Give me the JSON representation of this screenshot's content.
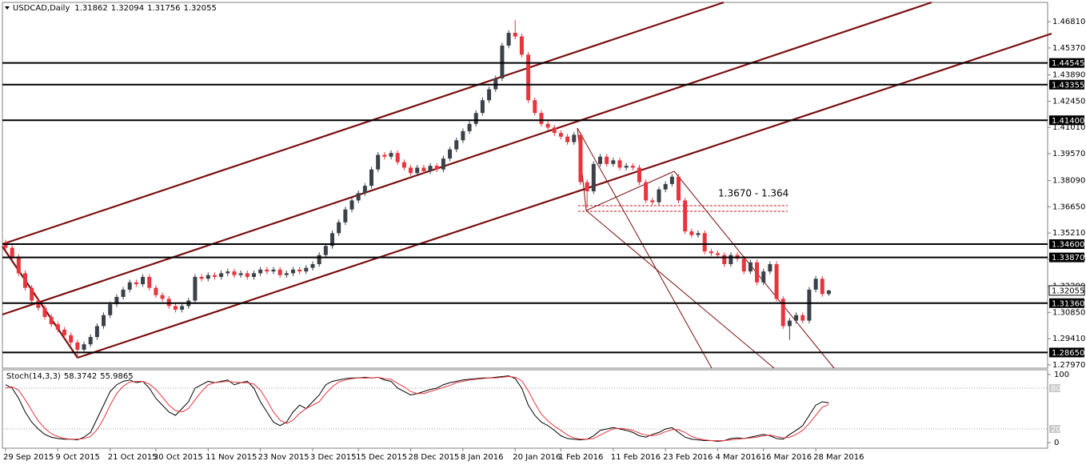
{
  "chart_data": [
    {
      "type": "candlestick",
      "title": "USDCAD,Daily",
      "categories": [
        "29 Sep 2015",
        null,
        null,
        null,
        null,
        null,
        null,
        null,
        "9 Oct 2015",
        null,
        null,
        null,
        null,
        null,
        null,
        null,
        "21 Oct 2015",
        null,
        null,
        null,
        null,
        null,
        null,
        "30 Oct 2015",
        null,
        null,
        null,
        null,
        null,
        null,
        null,
        "11 Nov 2015",
        null,
        null,
        null,
        null,
        null,
        null,
        null,
        "23 Nov 2015",
        null,
        null,
        null,
        null,
        null,
        null,
        null,
        "3 Dec 2015",
        null,
        null,
        null,
        null,
        null,
        null,
        "15 Dec 2015",
        null,
        null,
        null,
        null,
        null,
        null,
        null,
        "28 Dec 2015",
        null,
        null,
        null,
        null,
        null,
        null,
        null,
        "8 Jan 2016",
        null,
        null,
        null,
        null,
        null,
        null,
        null,
        "20 Jan 2016",
        null,
        null,
        null,
        null,
        null,
        null,
        "1 Feb 2016",
        null,
        null,
        null,
        null,
        null,
        null,
        null,
        "11 Feb 2016",
        null,
        null,
        null,
        null,
        null,
        null,
        null,
        "23 Feb 2016",
        null,
        null,
        null,
        null,
        null,
        null,
        null,
        "4 Mar 2016",
        null,
        null,
        null,
        null,
        null,
        null,
        "16 Mar 2016",
        null,
        null,
        null,
        null,
        null,
        null,
        null,
        "28 Mar 2016",
        null,
        null
      ],
      "open": [
        1.347,
        1.344,
        1.339,
        1.33,
        1.322,
        1.315,
        1.311,
        1.306,
        1.302,
        1.299,
        1.296,
        1.292,
        1.288,
        1.291,
        1.295,
        1.301,
        1.307,
        1.313,
        1.317,
        1.321,
        1.325,
        1.324,
        1.328,
        1.322,
        1.318,
        1.316,
        1.312,
        1.31,
        1.312,
        1.315,
        1.328,
        1.327,
        1.329,
        1.328,
        1.33,
        1.331,
        1.329,
        1.33,
        1.328,
        1.33,
        1.332,
        1.331,
        1.332,
        1.329,
        1.33,
        1.332,
        1.331,
        1.333,
        1.335,
        1.34,
        1.345,
        1.352,
        1.358,
        1.365,
        1.37,
        1.374,
        1.378,
        1.387,
        1.395,
        1.394,
        1.396,
        1.391,
        1.388,
        1.385,
        1.388,
        1.386,
        1.389,
        1.387,
        1.393,
        1.398,
        1.403,
        1.408,
        1.412,
        1.418,
        1.425,
        1.431,
        1.437,
        1.455,
        1.462,
        1.46,
        1.45,
        1.425,
        1.418,
        1.412,
        1.41,
        1.407,
        1.405,
        1.402,
        1.406,
        1.38,
        1.375,
        1.39,
        1.394,
        1.39,
        1.392,
        1.388,
        1.389,
        1.388,
        1.38,
        1.37,
        1.369,
        1.376,
        1.379,
        1.383,
        1.37,
        1.353,
        1.351,
        1.352,
        1.342,
        1.341,
        1.34,
        1.335,
        1.34,
        1.338,
        1.331,
        1.336,
        1.325,
        1.331,
        1.335,
        1.316,
        1.301,
        1.304,
        1.307,
        1.304,
        1.321,
        1.327,
        1.31862
      ],
      "high": [
        1.3485,
        1.3455,
        1.3405,
        1.3315,
        1.3235,
        1.3165,
        1.3125,
        1.3075,
        1.3035,
        1.3005,
        1.2975,
        1.2935,
        1.2925,
        1.2965,
        1.3025,
        1.3085,
        1.3145,
        1.3185,
        1.3225,
        1.3265,
        1.3265,
        1.3295,
        1.3295,
        1.3235,
        1.3195,
        1.3175,
        1.3135,
        1.3135,
        1.3165,
        1.3295,
        1.3295,
        1.3305,
        1.3305,
        1.3315,
        1.3325,
        1.3325,
        1.3315,
        1.3315,
        1.3315,
        1.3335,
        1.3335,
        1.3335,
        1.3335,
        1.3315,
        1.3335,
        1.3335,
        1.3345,
        1.3365,
        1.3415,
        1.3465,
        1.3535,
        1.3595,
        1.3665,
        1.3715,
        1.3755,
        1.3795,
        1.3885,
        1.3965,
        1.3965,
        1.3975,
        1.3975,
        1.3925,
        1.3895,
        1.3895,
        1.3895,
        1.3905,
        1.3905,
        1.3945,
        1.3995,
        1.4045,
        1.4095,
        1.4135,
        1.4195,
        1.4265,
        1.4325,
        1.4385,
        1.4565,
        1.4635,
        1.4689,
        1.4615,
        1.4515,
        1.4265,
        1.4195,
        1.4135,
        1.4115,
        1.4085,
        1.4065,
        1.4075,
        1.4075,
        1.3815,
        1.3915,
        1.3955,
        1.3955,
        1.3935,
        1.3935,
        1.3905,
        1.3905,
        1.3895,
        1.3815,
        1.3715,
        1.3775,
        1.3805,
        1.3845,
        1.3845,
        1.3715,
        1.3545,
        1.3535,
        1.3535,
        1.3435,
        1.3425,
        1.3415,
        1.3415,
        1.3415,
        1.3395,
        1.3375,
        1.3375,
        1.3325,
        1.3365,
        1.3365,
        1.3175,
        1.3055,
        1.3085,
        1.3085,
        1.3225,
        1.3285,
        1.3285,
        1.32094
      ],
      "low": [
        1.3425,
        1.3375,
        1.3285,
        1.3205,
        1.3135,
        1.3095,
        1.3045,
        1.3005,
        1.2975,
        1.2945,
        1.2905,
        1.2845,
        1.2865,
        1.2895,
        1.2935,
        1.2995,
        1.3055,
        1.3115,
        1.3155,
        1.3195,
        1.3225,
        1.3225,
        1.3205,
        1.3165,
        1.3145,
        1.3105,
        1.3085,
        1.3085,
        1.3105,
        1.3135,
        1.3255,
        1.3255,
        1.3265,
        1.3265,
        1.3285,
        1.3275,
        1.3275,
        1.3265,
        1.3265,
        1.3285,
        1.3295,
        1.3295,
        1.3275,
        1.3275,
        1.3285,
        1.3295,
        1.3295,
        1.3315,
        1.3335,
        1.3385,
        1.3435,
        1.3505,
        1.3565,
        1.3635,
        1.3685,
        1.3725,
        1.3765,
        1.3855,
        1.3925,
        1.3925,
        1.3895,
        1.3865,
        1.3835,
        1.3835,
        1.3845,
        1.3845,
        1.3855,
        1.3855,
        1.3915,
        1.3965,
        1.4015,
        1.4065,
        1.4105,
        1.4165,
        1.4235,
        1.4295,
        1.4355,
        1.4535,
        1.4585,
        1.4485,
        1.4235,
        1.4165,
        1.4105,
        1.4085,
        1.4055,
        1.4035,
        1.4005,
        1.4005,
        1.3785,
        1.366,
        1.3735,
        1.3885,
        1.3885,
        1.3885,
        1.3865,
        1.3865,
        1.3865,
        1.3785,
        1.3685,
        1.3675,
        1.3675,
        1.3745,
        1.3775,
        1.3685,
        1.3515,
        1.3495,
        1.3495,
        1.3405,
        1.3395,
        1.3385,
        1.3335,
        1.3335,
        1.3365,
        1.3295,
        1.3295,
        1.3235,
        1.3235,
        1.3295,
        1.3145,
        1.2995,
        1.2935,
        1.3025,
        1.3025,
        1.3025,
        1.3195,
        1.3171,
        1.31756
      ],
      "close": [
        1.344,
        1.339,
        1.33,
        1.322,
        1.315,
        1.311,
        1.306,
        1.302,
        1.299,
        1.296,
        1.292,
        1.288,
        1.291,
        1.295,
        1.301,
        1.307,
        1.313,
        1.317,
        1.321,
        1.325,
        1.324,
        1.328,
        1.322,
        1.318,
        1.316,
        1.312,
        1.31,
        1.312,
        1.315,
        1.328,
        1.327,
        1.329,
        1.328,
        1.33,
        1.331,
        1.329,
        1.33,
        1.328,
        1.33,
        1.332,
        1.331,
        1.332,
        1.329,
        1.33,
        1.332,
        1.331,
        1.333,
        1.335,
        1.34,
        1.345,
        1.352,
        1.358,
        1.365,
        1.37,
        1.374,
        1.378,
        1.387,
        1.395,
        1.394,
        1.396,
        1.391,
        1.388,
        1.385,
        1.388,
        1.386,
        1.389,
        1.387,
        1.393,
        1.398,
        1.403,
        1.408,
        1.412,
        1.418,
        1.425,
        1.431,
        1.437,
        1.455,
        1.462,
        1.46,
        1.45,
        1.425,
        1.418,
        1.412,
        1.41,
        1.407,
        1.405,
        1.402,
        1.406,
        1.38,
        1.375,
        1.39,
        1.394,
        1.39,
        1.392,
        1.388,
        1.389,
        1.388,
        1.38,
        1.37,
        1.369,
        1.376,
        1.379,
        1.383,
        1.37,
        1.353,
        1.351,
        1.352,
        1.342,
        1.341,
        1.34,
        1.335,
        1.34,
        1.338,
        1.331,
        1.336,
        1.325,
        1.331,
        1.335,
        1.316,
        1.301,
        1.304,
        1.307,
        1.304,
        1.321,
        1.327,
        1.3186,
        1.32055
      ],
      "up_color": "#3b4149",
      "down_color": "#e8343c",
      "ylim": [
        1.2779,
        1.4787
      ],
      "yticks": [
        {
          "value": 1.4681,
          "label": "1.46810"
        },
        {
          "value": 1.4537,
          "label": "1.45370"
        },
        {
          "value": 1.4389,
          "label": "1.43890"
        },
        {
          "value": 1.4245,
          "label": "1.42450"
        },
        {
          "value": 1.4101,
          "label": "1.41010"
        },
        {
          "value": 1.3957,
          "label": "1.39570"
        },
        {
          "value": 1.3809,
          "label": "1.38090"
        },
        {
          "value": 1.3665,
          "label": "1.36650"
        },
        {
          "value": 1.3521,
          "label": "1.35210"
        },
        {
          "value": 1.3377,
          "label": "1.33770"
        },
        {
          "value": 1.3229,
          "label": "1.32290"
        },
        {
          "value": 1.3085,
          "label": "1.30850"
        },
        {
          "value": 1.2941,
          "label": "1.29410"
        },
        {
          "value": 1.2797,
          "label": "1.27970"
        }
      ],
      "levels": [
        1.44545,
        1.43355,
        {
          "value": 1.414,
          "label": "1.41400"
        },
        {
          "value": 1.346,
          "label": "1.34600"
        },
        {
          "value": 1.3387,
          "label": "1.33870"
        },
        {
          "value": 1.3136,
          "label": "1.31360"
        },
        {
          "value": 1.2865,
          "label": "1.28650"
        }
      ],
      "annotation": "1.3670 - 1.364"
    },
    {
      "type": "line",
      "title": "Stoch(14,3,3)",
      "series": [
        {
          "color": "#000000",
          "values": [
            85,
            80,
            65,
            45,
            30,
            20,
            12,
            8,
            6,
            5,
            5,
            4,
            8,
            15,
            35,
            55,
            75,
            85,
            90,
            92,
            88,
            90,
            80,
            65,
            55,
            45,
            40,
            50,
            60,
            80,
            85,
            90,
            88,
            90,
            92,
            85,
            88,
            90,
            80,
            60,
            45,
            30,
            25,
            30,
            45,
            55,
            50,
            60,
            70,
            85,
            90,
            92,
            94,
            95,
            95,
            96,
            95,
            96,
            92,
            90,
            80,
            75,
            70,
            72,
            75,
            78,
            80,
            85,
            88,
            90,
            92,
            93,
            94,
            95,
            95,
            96,
            97,
            98,
            94,
            80,
            55,
            40,
            30,
            25,
            18,
            10,
            6,
            5,
            4,
            5,
            10,
            18,
            20,
            22,
            20,
            18,
            15,
            10,
            8,
            12,
            15,
            20,
            22,
            15,
            8,
            5,
            4,
            3,
            3,
            2,
            3,
            6,
            7,
            6,
            8,
            10,
            12,
            10,
            6,
            5,
            12,
            18,
            25,
            40,
            55,
            60,
            58.3742
          ]
        },
        {
          "color": "#e8343c",
          "values": [
            80,
            82,
            77,
            63,
            47,
            32,
            21,
            13,
            9,
            6,
            5,
            5,
            6,
            9,
            19,
            35,
            55,
            72,
            83,
            89,
            90,
            90,
            86,
            78,
            67,
            55,
            47,
            45,
            50,
            63,
            75,
            85,
            88,
            89,
            90,
            89,
            88,
            88,
            86,
            77,
            62,
            45,
            33,
            28,
            33,
            43,
            50,
            55,
            60,
            72,
            82,
            89,
            92,
            94,
            95,
            95,
            95,
            96,
            94,
            93,
            87,
            82,
            75,
            72,
            72,
            75,
            78,
            81,
            84,
            88,
            90,
            92,
            93,
            94,
            95,
            95,
            96,
            97,
            96,
            91,
            76,
            58,
            42,
            32,
            24,
            18,
            11,
            7,
            5,
            5,
            6,
            11,
            16,
            20,
            21,
            20,
            18,
            14,
            11,
            10,
            12,
            16,
            19,
            19,
            15,
            9,
            6,
            4,
            3,
            3,
            3,
            4,
            5,
            6,
            7,
            8,
            10,
            11,
            9,
            7,
            8,
            12,
            18,
            28,
            40,
            52,
            55.9865
          ]
        }
      ],
      "ylim": [
        -8.2,
        107
      ],
      "yticks": [
        100,
        0
      ],
      "levels": [
        80,
        20
      ]
    }
  ]
}
